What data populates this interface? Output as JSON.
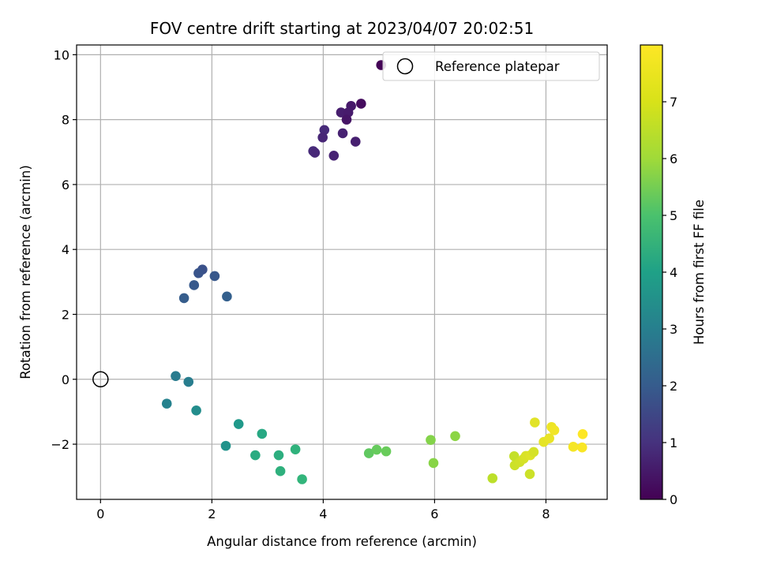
{
  "chart_data": {
    "type": "scatter",
    "title": "FOV centre drift starting at 2023/04/07 20:02:51",
    "xlabel": "Angular distance from reference (arcmin)",
    "ylabel": "Rotation from reference (arcmin)",
    "xlim": [
      -0.43,
      9.1
    ],
    "ylim": [
      -3.7,
      10.3
    ],
    "xticks": [
      0,
      2,
      4,
      6,
      8
    ],
    "yticks": [
      10,
      8,
      6,
      4,
      2,
      0,
      -2
    ],
    "grid": true,
    "colormap": "viridis",
    "colorbar": {
      "label": "Hours from first FF file",
      "min": 0,
      "max": 8,
      "ticks": [
        0,
        1,
        2,
        3,
        4,
        5,
        6,
        7
      ]
    },
    "legend": {
      "placement": "top-right",
      "entries": [
        "Reference platepar"
      ]
    },
    "reference_point": {
      "x": 0,
      "y": 0,
      "name": "Reference platepar"
    },
    "points": [
      {
        "x": 5.04,
        "y": 9.68,
        "c": 0.05
      },
      {
        "x": 4.68,
        "y": 8.49,
        "c": 0.25
      },
      {
        "x": 4.5,
        "y": 8.42,
        "c": 0.55
      },
      {
        "x": 4.32,
        "y": 8.22,
        "c": 0.65
      },
      {
        "x": 4.45,
        "y": 8.22,
        "c": 0.6
      },
      {
        "x": 4.42,
        "y": 8.0,
        "c": 0.45
      },
      {
        "x": 4.35,
        "y": 7.58,
        "c": 0.75
      },
      {
        "x": 4.58,
        "y": 7.32,
        "c": 0.7
      },
      {
        "x": 4.02,
        "y": 7.68,
        "c": 0.95
      },
      {
        "x": 3.99,
        "y": 7.45,
        "c": 0.85
      },
      {
        "x": 3.82,
        "y": 7.03,
        "c": 1.0
      },
      {
        "x": 3.85,
        "y": 6.98,
        "c": 0.9
      },
      {
        "x": 4.19,
        "y": 6.89,
        "c": 0.8
      },
      {
        "x": 1.83,
        "y": 3.38,
        "c": 2.0
      },
      {
        "x": 1.76,
        "y": 3.27,
        "c": 2.1
      },
      {
        "x": 2.05,
        "y": 3.18,
        "c": 2.2
      },
      {
        "x": 1.68,
        "y": 2.9,
        "c": 2.25
      },
      {
        "x": 1.5,
        "y": 2.5,
        "c": 2.35
      },
      {
        "x": 2.27,
        "y": 2.55,
        "c": 2.45
      },
      {
        "x": 1.35,
        "y": 0.1,
        "c": 3.3
      },
      {
        "x": 1.58,
        "y": -0.08,
        "c": 3.4
      },
      {
        "x": 1.19,
        "y": -0.75,
        "c": 3.55
      },
      {
        "x": 1.72,
        "y": -0.96,
        "c": 3.9
      },
      {
        "x": 2.25,
        "y": -2.05,
        "c": 4.1
      },
      {
        "x": 2.48,
        "y": -1.38,
        "c": 4.3
      },
      {
        "x": 2.9,
        "y": -1.68,
        "c": 4.8
      },
      {
        "x": 2.78,
        "y": -2.34,
        "c": 4.9
      },
      {
        "x": 3.2,
        "y": -2.34,
        "c": 5.0
      },
      {
        "x": 3.23,
        "y": -2.83,
        "c": 5.1
      },
      {
        "x": 3.5,
        "y": -2.16,
        "c": 5.15
      },
      {
        "x": 3.62,
        "y": -3.08,
        "c": 5.25
      },
      {
        "x": 4.82,
        "y": -2.28,
        "c": 6.0
      },
      {
        "x": 4.96,
        "y": -2.17,
        "c": 6.1
      },
      {
        "x": 5.13,
        "y": -2.22,
        "c": 6.15
      },
      {
        "x": 5.93,
        "y": -1.87,
        "c": 6.5
      },
      {
        "x": 5.98,
        "y": -2.58,
        "c": 6.55
      },
      {
        "x": 6.37,
        "y": -1.75,
        "c": 6.6
      },
      {
        "x": 7.04,
        "y": -3.05,
        "c": 7.2
      },
      {
        "x": 7.43,
        "y": -2.37,
        "c": 7.3
      },
      {
        "x": 7.44,
        "y": -2.65,
        "c": 7.4
      },
      {
        "x": 7.53,
        "y": -2.55,
        "c": 7.45
      },
      {
        "x": 7.6,
        "y": -2.45,
        "c": 7.5
      },
      {
        "x": 7.64,
        "y": -2.36,
        "c": 7.55
      },
      {
        "x": 7.72,
        "y": -2.34,
        "c": 7.6
      },
      {
        "x": 7.78,
        "y": -2.24,
        "c": 7.5
      },
      {
        "x": 7.71,
        "y": -2.92,
        "c": 7.4
      },
      {
        "x": 7.8,
        "y": -1.33,
        "c": 7.65
      },
      {
        "x": 7.96,
        "y": -1.93,
        "c": 7.7
      },
      {
        "x": 8.06,
        "y": -1.82,
        "c": 7.75
      },
      {
        "x": 8.1,
        "y": -1.47,
        "c": 7.8
      },
      {
        "x": 8.15,
        "y": -1.57,
        "c": 7.85
      },
      {
        "x": 8.49,
        "y": -2.08,
        "c": 7.9
      },
      {
        "x": 8.65,
        "y": -2.1,
        "c": 7.95
      },
      {
        "x": 8.66,
        "y": -1.69,
        "c": 8.0
      }
    ]
  }
}
